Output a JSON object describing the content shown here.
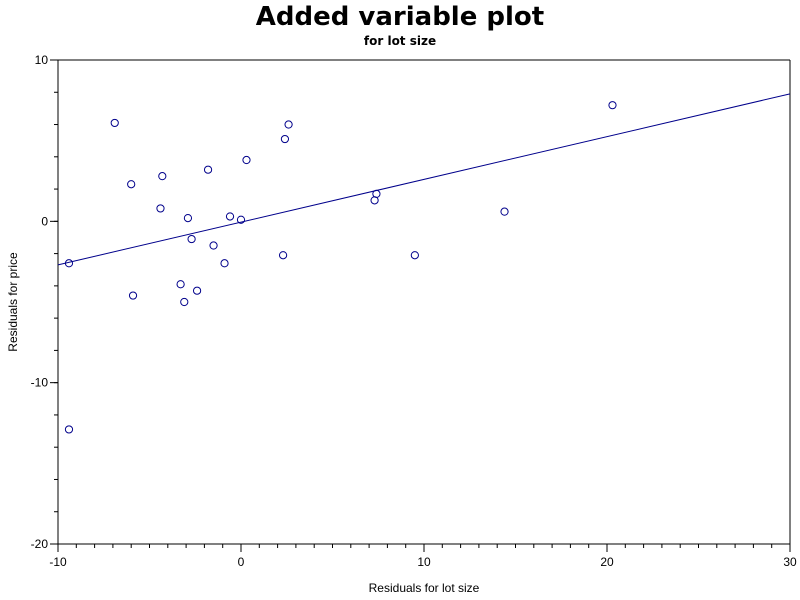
{
  "chart_data": {
    "type": "scatter",
    "title": "Added variable plot",
    "subtitle": "for lot size",
    "xlabel": "Residuals for lot size",
    "ylabel": "Residuals for price",
    "xlim": [
      -10,
      30
    ],
    "ylim": [
      -20,
      10
    ],
    "x_ticks": [
      -10,
      0,
      10,
      20,
      30
    ],
    "y_ticks": [
      -20,
      -10,
      0,
      10
    ],
    "x_minor_step": 1,
    "y_minor_step": 2,
    "grid": false,
    "legend": "none",
    "marker_color": "#00008b",
    "line_color": "#00008b",
    "points": [
      {
        "x": -9.4,
        "y": -2.6
      },
      {
        "x": -9.4,
        "y": -12.9
      },
      {
        "x": -6.9,
        "y": 6.1
      },
      {
        "x": -6.0,
        "y": 2.3
      },
      {
        "x": -5.9,
        "y": -4.6
      },
      {
        "x": -4.3,
        "y": 2.8
      },
      {
        "x": -4.4,
        "y": 0.8
      },
      {
        "x": -3.3,
        "y": -3.9
      },
      {
        "x": -3.1,
        "y": -5.0
      },
      {
        "x": -2.9,
        "y": 0.2
      },
      {
        "x": -2.7,
        "y": -1.1
      },
      {
        "x": -2.4,
        "y": -4.3
      },
      {
        "x": -1.8,
        "y": 3.2
      },
      {
        "x": -1.5,
        "y": -1.5
      },
      {
        "x": -0.9,
        "y": -2.6
      },
      {
        "x": -0.6,
        "y": 0.3
      },
      {
        "x": 0.0,
        "y": 0.1
      },
      {
        "x": 0.3,
        "y": 3.8
      },
      {
        "x": 2.3,
        "y": -2.1
      },
      {
        "x": 2.4,
        "y": 5.1
      },
      {
        "x": 2.6,
        "y": 6.0
      },
      {
        "x": 7.3,
        "y": 1.3
      },
      {
        "x": 7.4,
        "y": 1.7
      },
      {
        "x": 9.5,
        "y": -2.1
      },
      {
        "x": 14.4,
        "y": 0.6
      },
      {
        "x": 20.3,
        "y": 7.2
      }
    ],
    "fit_line": {
      "x": [
        -10,
        30
      ],
      "y": [
        -2.7,
        7.9
      ]
    }
  }
}
